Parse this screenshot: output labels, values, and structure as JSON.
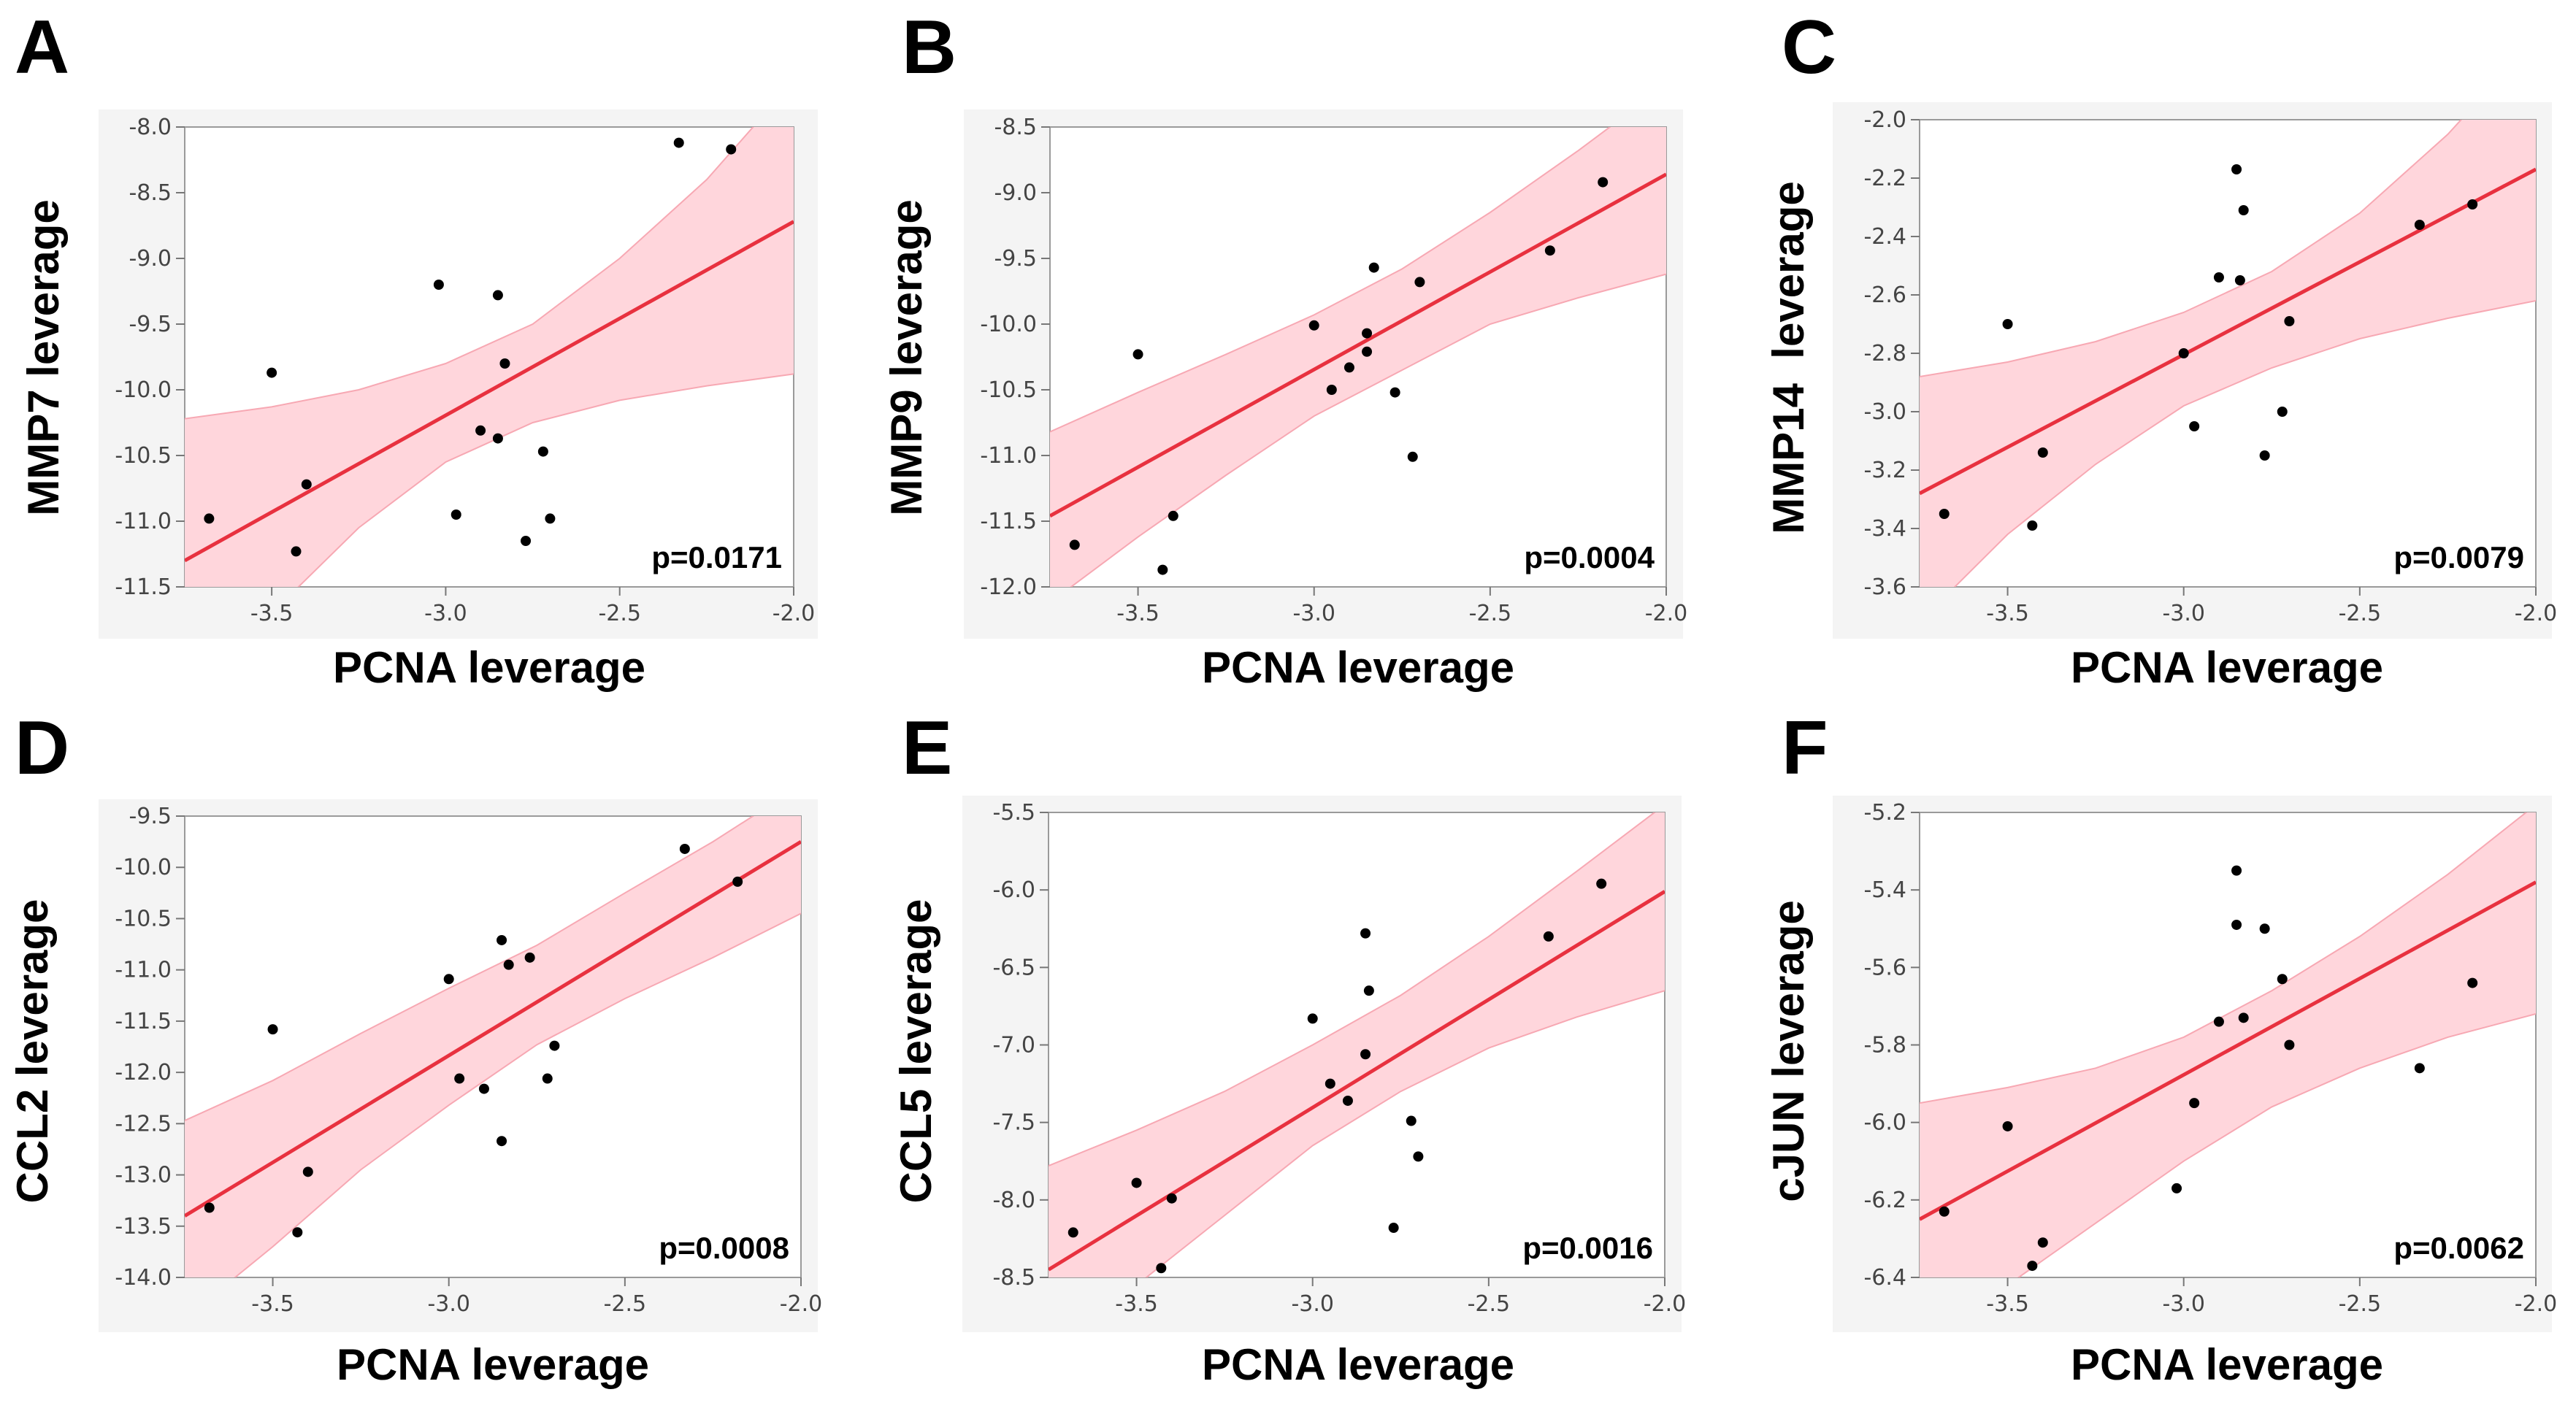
{
  "colors": {
    "band": "#ffd6dc",
    "band_edge": "#f7a8b3",
    "fit_line": "#e8313f",
    "point": "#000000",
    "frame": "#9a9a9a"
  },
  "chart_data": [
    {
      "panel": "A",
      "type": "scatter",
      "xlabel": "PCNA leverage",
      "ylabel": "MMP7 leverage",
      "xlim": [
        -3.75,
        -2.0
      ],
      "ylim": [
        -11.5,
        -8.0
      ],
      "xticks": [
        "-3.5",
        "-3.0",
        "-2.5",
        "-2.0"
      ],
      "yticks": [
        "-8.0",
        "-8.5",
        "-9.0",
        "-9.5",
        "-10.0",
        "-10.5",
        "-11.0",
        "-11.5"
      ],
      "x": [
        -3.68,
        -3.5,
        -3.43,
        -3.4,
        -3.02,
        -2.97,
        -2.9,
        -2.85,
        -2.85,
        -2.83,
        -2.77,
        -2.72,
        -2.7,
        -2.33,
        -2.18
      ],
      "y": [
        -10.98,
        -9.87,
        -11.23,
        -10.72,
        -9.2,
        -10.95,
        -10.31,
        -9.28,
        -10.37,
        -9.8,
        -11.15,
        -10.47,
        -10.98,
        -8.12,
        -8.17
      ],
      "fit_line": [
        [
          -3.75,
          -11.3
        ],
        [
          -2.0,
          -8.72
        ]
      ],
      "ci_band": {
        "x": [
          -3.75,
          -3.5,
          -3.25,
          -3.0,
          -2.75,
          -2.5,
          -2.25,
          -2.0
        ],
        "upper": [
          -10.22,
          -10.13,
          -10.0,
          -9.8,
          -9.5,
          -9.0,
          -8.4,
          -7.65
        ],
        "lower": [
          -12.45,
          -11.7,
          -11.05,
          -10.55,
          -10.25,
          -10.08,
          -9.97,
          -9.88
        ]
      },
      "p_value": "p=0.0171"
    },
    {
      "panel": "B",
      "type": "scatter",
      "xlabel": "PCNA leverage",
      "ylabel": "MMP9 leverage",
      "xlim": [
        -3.75,
        -2.0
      ],
      "ylim": [
        -12.0,
        -8.5
      ],
      "xticks": [
        "-3.5",
        "-3.0",
        "-2.5",
        "-2.0"
      ],
      "yticks": [
        "-8.5",
        "-9.0",
        "-9.5",
        "-10.0",
        "-10.5",
        "-11.0",
        "-11.5",
        "-12.0"
      ],
      "x": [
        -3.68,
        -3.5,
        -3.43,
        -3.4,
        -3.0,
        -2.95,
        -2.9,
        -2.85,
        -2.85,
        -2.83,
        -2.77,
        -2.72,
        -2.7,
        -2.33,
        -2.18
      ],
      "y": [
        -11.68,
        -10.23,
        -11.87,
        -11.46,
        -10.01,
        -10.5,
        -10.33,
        -10.07,
        -10.21,
        -9.57,
        -10.52,
        -11.01,
        -9.68,
        -9.44,
        -8.92
      ],
      "fit_line": [
        [
          -3.75,
          -11.46
        ],
        [
          -2.0,
          -8.86
        ]
      ],
      "ci_band": {
        "x": [
          -3.75,
          -3.5,
          -3.25,
          -3.0,
          -2.75,
          -2.5,
          -2.25,
          -2.0
        ],
        "upper": [
          -10.82,
          -10.52,
          -10.23,
          -9.93,
          -9.58,
          -9.15,
          -8.68,
          -8.18
        ],
        "lower": [
          -12.12,
          -11.62,
          -11.15,
          -10.7,
          -10.35,
          -10.0,
          -9.8,
          -9.62
        ]
      },
      "p_value": "p=0.0004"
    },
    {
      "panel": "C",
      "type": "scatter",
      "xlabel": "PCNA leverage",
      "ylabel": "MMP14  leverage",
      "xlim": [
        -3.75,
        -2.0
      ],
      "ylim": [
        -3.6,
        -2.0
      ],
      "xticks": [
        "-3.5",
        "-3.0",
        "-2.5",
        "-2.0"
      ],
      "yticks": [
        "-2.0",
        "-2.2",
        "-2.4",
        "-2.6",
        "-2.8",
        "-3.0",
        "-3.2",
        "-3.4",
        "-3.6"
      ],
      "x": [
        -3.68,
        -3.5,
        -3.43,
        -3.4,
        -3.0,
        -2.97,
        -2.9,
        -2.85,
        -2.84,
        -2.83,
        -2.77,
        -2.72,
        -2.7,
        -2.33,
        -2.18
      ],
      "y": [
        -3.35,
        -2.7,
        -3.39,
        -3.14,
        -2.8,
        -3.05,
        -2.54,
        -2.17,
        -2.55,
        -2.31,
        -3.15,
        -3.0,
        -2.69,
        -2.36,
        -2.29
      ],
      "fit_line": [
        [
          -3.75,
          -3.28
        ],
        [
          -2.0,
          -2.17
        ]
      ],
      "ci_band": {
        "x": [
          -3.75,
          -3.5,
          -3.25,
          -3.0,
          -2.75,
          -2.5,
          -2.25,
          -2.0
        ],
        "upper": [
          -2.88,
          -2.83,
          -2.76,
          -2.66,
          -2.52,
          -2.32,
          -2.05,
          -1.72
        ],
        "lower": [
          -3.72,
          -3.42,
          -3.18,
          -2.98,
          -2.85,
          -2.75,
          -2.68,
          -2.62
        ]
      },
      "p_value": "p=0.0079"
    },
    {
      "panel": "D",
      "type": "scatter",
      "xlabel": "PCNA leverage",
      "ylabel": "CCL2 leverage",
      "xlim": [
        -3.75,
        -2.0
      ],
      "ylim": [
        -14.0,
        -9.5
      ],
      "xticks": [
        "-3.5",
        "-3.0",
        "-2.5",
        "-2.0"
      ],
      "yticks": [
        "-9.5",
        "-10.0",
        "-10.5",
        "-11.0",
        "-11.5",
        "-12.0",
        "-12.5",
        "-13.0",
        "-13.5",
        "-14.0"
      ],
      "x": [
        -3.68,
        -3.5,
        -3.43,
        -3.4,
        -3.0,
        -2.97,
        -2.9,
        -2.85,
        -2.85,
        -2.83,
        -2.77,
        -2.72,
        -2.7,
        -2.33,
        -2.18
      ],
      "y": [
        -13.32,
        -11.58,
        -13.56,
        -12.97,
        -11.09,
        -12.06,
        -12.16,
        -10.71,
        -12.67,
        -10.95,
        -10.88,
        -12.06,
        -11.74,
        -9.82,
        -10.14
      ],
      "fit_line": [
        [
          -3.75,
          -13.4
        ],
        [
          -2.0,
          -9.75
        ]
      ],
      "ci_band": {
        "x": [
          -3.75,
          -3.5,
          -3.25,
          -3.0,
          -2.75,
          -2.5,
          -2.25,
          -2.0
        ],
        "upper": [
          -12.47,
          -12.08,
          -11.62,
          -11.18,
          -10.76,
          -10.25,
          -9.75,
          -9.2
        ],
        "lower": [
          -14.4,
          -13.7,
          -12.95,
          -12.32,
          -11.73,
          -11.28,
          -10.88,
          -10.45
        ]
      },
      "p_value": "p=0.0008"
    },
    {
      "panel": "E",
      "type": "scatter",
      "xlabel": "PCNA leverage",
      "ylabel": "CCL5 leverage",
      "xlim": [
        -3.75,
        -2.0
      ],
      "ylim": [
        -8.5,
        -5.5
      ],
      "xticks": [
        "-3.5",
        "-3.0",
        "-2.5",
        "-2.0"
      ],
      "yticks": [
        "-5.5",
        "-6.0",
        "-6.5",
        "-7.0",
        "-7.5",
        "-8.0",
        "-8.5"
      ],
      "x": [
        -3.68,
        -3.5,
        -3.43,
        -3.4,
        -3.0,
        -2.95,
        -2.9,
        -2.85,
        -2.85,
        -2.84,
        -2.77,
        -2.72,
        -2.7,
        -2.33,
        -2.18
      ],
      "y": [
        -8.21,
        -7.89,
        -8.44,
        -7.99,
        -6.83,
        -7.25,
        -7.36,
        -6.28,
        -7.06,
        -6.65,
        -8.18,
        -7.49,
        -7.72,
        -6.3,
        -5.96
      ],
      "fit_line": [
        [
          -3.75,
          -8.45
        ],
        [
          -2.0,
          -6.01
        ]
      ],
      "ci_band": {
        "x": [
          -3.75,
          -3.5,
          -3.25,
          -3.0,
          -2.75,
          -2.5,
          -2.25,
          -2.0
        ],
        "upper": [
          -7.78,
          -7.55,
          -7.3,
          -7.0,
          -6.68,
          -6.3,
          -5.88,
          -5.45
        ],
        "lower": [
          -9.1,
          -8.55,
          -8.1,
          -7.65,
          -7.3,
          -7.02,
          -6.82,
          -6.65
        ]
      },
      "p_value": "p=0.0016"
    },
    {
      "panel": "F",
      "type": "scatter",
      "xlabel": "PCNA leverage",
      "ylabel": "cJUN leverage",
      "xlim": [
        -3.75,
        -2.0
      ],
      "ylim": [
        -6.4,
        -5.2
      ],
      "xticks": [
        "-3.5",
        "-3.0",
        "-2.5",
        "-2.0"
      ],
      "yticks": [
        "-5.2",
        "-5.4",
        "-5.6",
        "-5.8",
        "-6.0",
        "-6.2",
        "-6.4"
      ],
      "x": [
        -3.68,
        -3.5,
        -3.43,
        -3.4,
        -3.02,
        -2.97,
        -2.9,
        -2.85,
        -2.85,
        -2.83,
        -2.77,
        -2.72,
        -2.7,
        -2.33,
        -2.18
      ],
      "y": [
        -6.23,
        -6.01,
        -6.37,
        -6.31,
        -6.17,
        -5.95,
        -5.74,
        -5.35,
        -5.49,
        -5.73,
        -5.5,
        -5.63,
        -5.8,
        -5.86,
        -5.64
      ],
      "fit_line": [
        [
          -3.75,
          -6.25
        ],
        [
          -2.0,
          -5.38
        ]
      ],
      "ci_band": {
        "x": [
          -3.75,
          -3.5,
          -3.25,
          -3.0,
          -2.75,
          -2.5,
          -2.25,
          -2.0
        ],
        "upper": [
          -5.95,
          -5.91,
          -5.86,
          -5.78,
          -5.66,
          -5.52,
          -5.36,
          -5.18
        ],
        "lower": [
          -6.58,
          -6.42,
          -6.26,
          -6.1,
          -5.96,
          -5.86,
          -5.78,
          -5.72
        ]
      },
      "p_value": "p=0.0062"
    }
  ]
}
